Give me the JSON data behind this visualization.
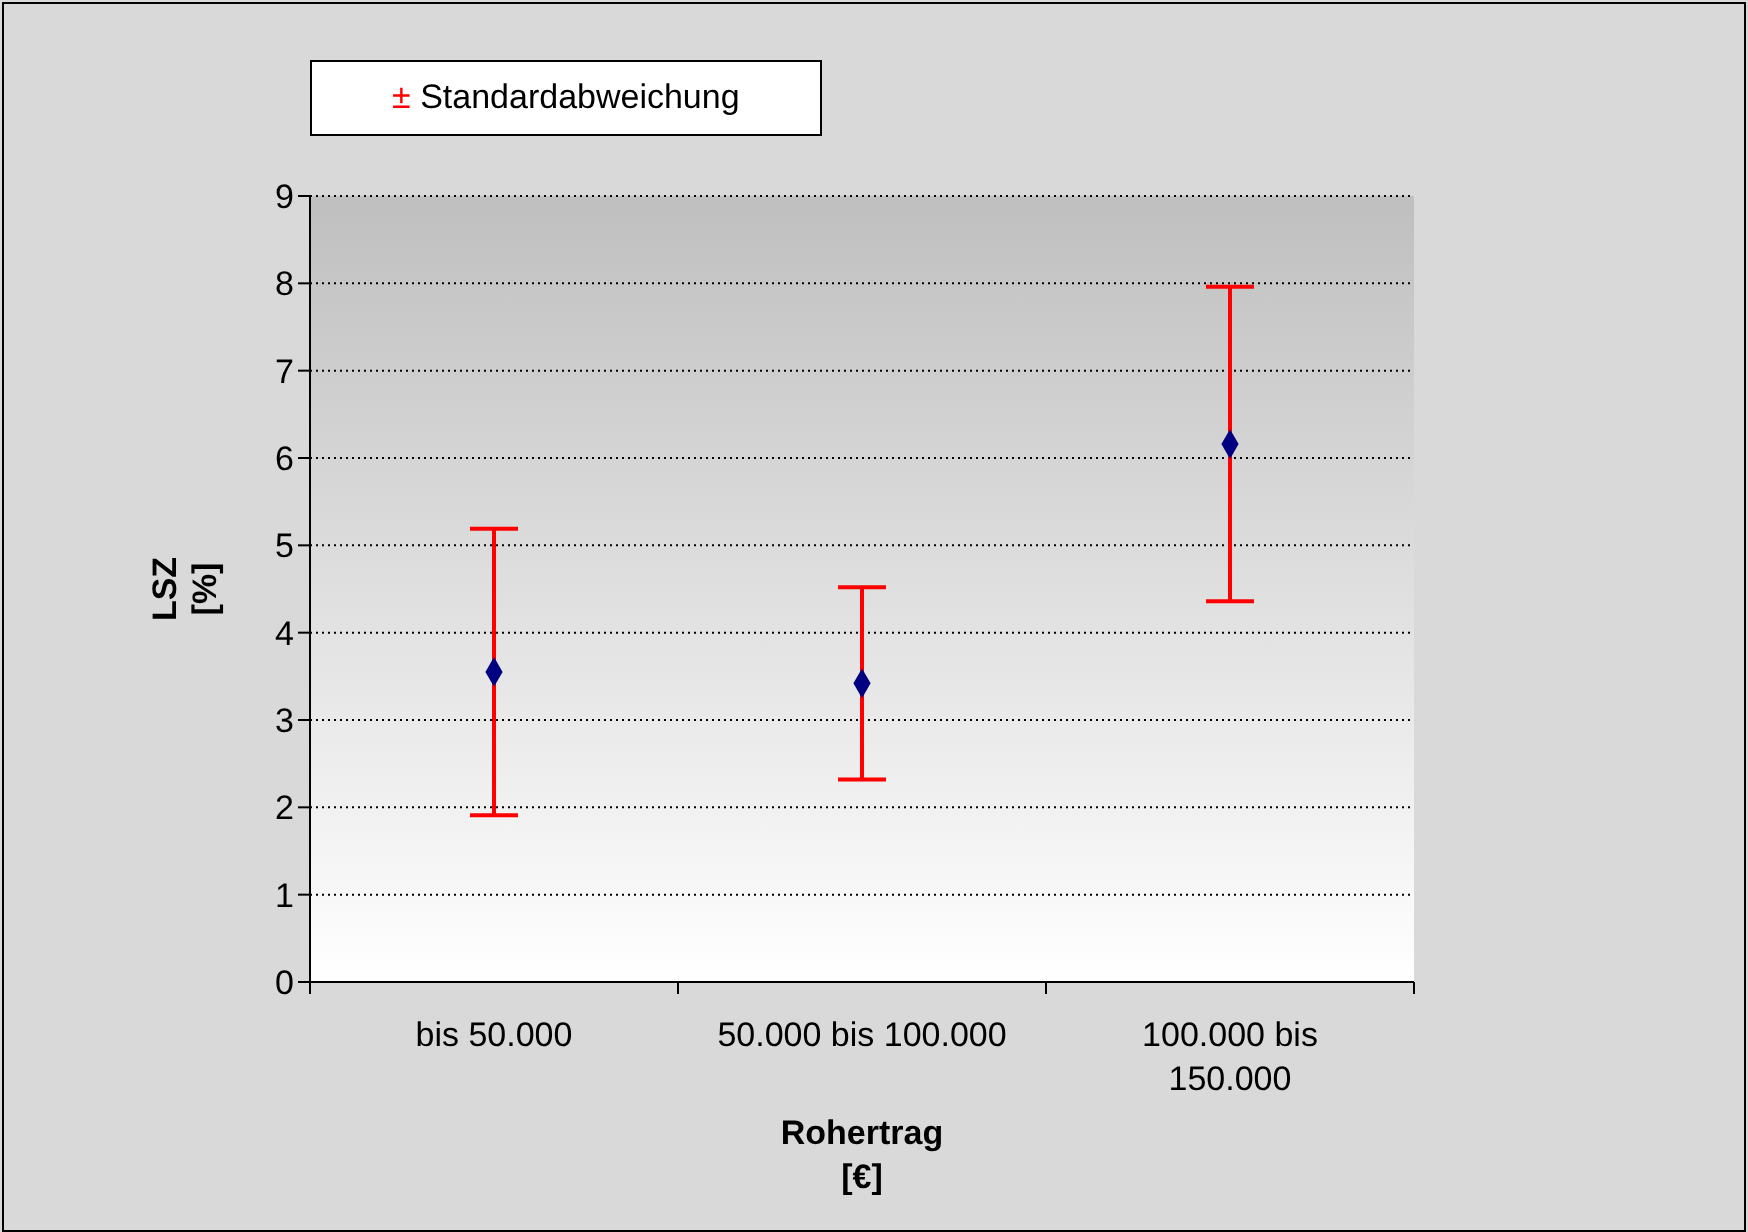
{
  "chart_data": {
    "type": "scatter",
    "xlabel": "Rohertrag\n[€]",
    "ylabel": "LSZ\n[%]",
    "categories": [
      "bis 50.000",
      "50.000 bis 100.000",
      "100.000 bis 150.000"
    ],
    "series": [
      {
        "name": "± Standardabweichung",
        "color": "#000080",
        "values": [
          3.55,
          3.42,
          6.16
        ],
        "errors": [
          1.64,
          1.1,
          1.8
        ]
      }
    ],
    "ylim": [
      0,
      9
    ],
    "yticks": [
      0,
      1,
      2,
      3,
      4,
      5,
      6,
      7,
      8,
      9
    ],
    "grid": "y",
    "legend": "top left",
    "marker": "diamond"
  }
}
